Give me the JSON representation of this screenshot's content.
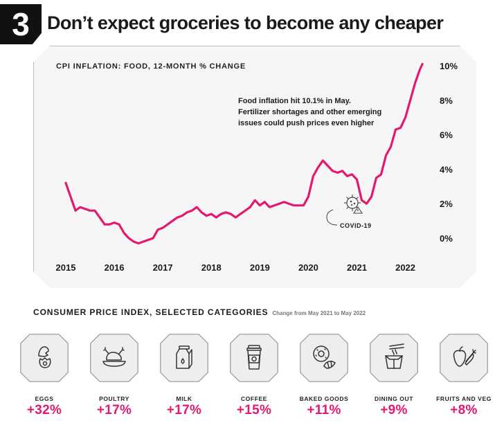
{
  "badge_number": "3",
  "headline": "Don’t expect groceries to become any cheaper",
  "colors": {
    "accent": "#e4186e",
    "panel": "#f6f6f6",
    "badge": "#111111"
  },
  "chart_data": {
    "type": "line",
    "title": "CPI INFLATION: FOOD, 12-MONTH % CHANGE",
    "xlabel": "",
    "ylabel": "",
    "x_tick_labels": [
      "2015",
      "2016",
      "2017",
      "2018",
      "2019",
      "2020",
      "2021",
      "2022"
    ],
    "y_tick_labels": [
      "10%",
      "8%",
      "6%",
      "4%",
      "2%",
      "0%"
    ],
    "y_ticks": [
      10,
      8,
      6,
      4,
      2,
      0
    ],
    "ylim": [
      0,
      10
    ],
    "xlim": [
      2015.0,
      2022.42
    ],
    "series": [
      {
        "name": "Food CPI 12-month % change",
        "x": [
          2015.0,
          2015.1,
          2015.2,
          2015.3,
          2015.4,
          2015.5,
          2015.6,
          2015.7,
          2015.8,
          2015.9,
          2016.0,
          2016.1,
          2016.2,
          2016.3,
          2016.4,
          2016.5,
          2016.6,
          2016.7,
          2016.8,
          2016.9,
          2017.0,
          2017.1,
          2017.2,
          2017.3,
          2017.4,
          2017.5,
          2017.6,
          2017.7,
          2017.8,
          2017.9,
          2018.0,
          2018.1,
          2018.2,
          2018.3,
          2018.4,
          2018.5,
          2018.6,
          2018.7,
          2018.8,
          2018.9,
          2019.0,
          2019.1,
          2019.2,
          2019.3,
          2019.4,
          2019.5,
          2019.6,
          2019.7,
          2019.8,
          2019.9,
          2020.0,
          2020.1,
          2020.2,
          2020.3,
          2020.4,
          2020.5,
          2020.6,
          2020.7,
          2020.8,
          2020.9,
          2021.0,
          2021.1,
          2021.2,
          2021.3,
          2021.4,
          2021.5,
          2021.6,
          2021.7,
          2021.8,
          2021.9,
          2022.0,
          2022.1,
          2022.2,
          2022.3,
          2022.35
        ],
        "values": [
          3.2,
          2.4,
          1.6,
          1.8,
          1.7,
          1.6,
          1.6,
          1.2,
          0.8,
          0.8,
          0.9,
          0.8,
          0.3,
          0.0,
          -0.2,
          -0.3,
          -0.2,
          -0.1,
          0.0,
          0.5,
          0.6,
          0.8,
          1.0,
          1.2,
          1.3,
          1.5,
          1.6,
          1.8,
          1.5,
          1.3,
          1.4,
          1.2,
          1.4,
          1.5,
          1.4,
          1.2,
          1.4,
          1.6,
          1.8,
          2.2,
          1.9,
          2.1,
          1.8,
          1.9,
          2.0,
          2.1,
          2.0,
          1.9,
          1.9,
          1.9,
          2.4,
          3.6,
          4.1,
          4.5,
          4.2,
          3.9,
          3.8,
          3.9,
          3.6,
          3.7,
          3.4,
          2.2,
          2.0,
          2.4,
          3.5,
          3.7,
          4.8,
          5.3,
          6.3,
          6.4,
          7.0,
          8.0,
          9.0,
          9.8,
          10.1
        ]
      }
    ],
    "annotations": [
      {
        "lines": [
          "Food inflation hit 10.1% in May.",
          "Fertilizer shortages and other emerging",
          "issues could push prices even higher"
        ]
      },
      {
        "label": "COVID-19",
        "x": 2020.0,
        "y": 1.9,
        "icon": "virus-icon"
      }
    ]
  },
  "categories_section": {
    "title": "CONSUMER PRICE INDEX, SELECTED CATEGORIES",
    "subtitle": "Change from May 2021 to May 2022",
    "items": [
      {
        "label": "EGGS",
        "value": "+32%",
        "icon": "egg-icon"
      },
      {
        "label": "POULTRY",
        "value": "+17%",
        "icon": "roast-chicken-icon"
      },
      {
        "label": "MILK",
        "value": "+17%",
        "icon": "milk-carton-icon"
      },
      {
        "label": "COFFEE",
        "value": "+15%",
        "icon": "coffee-cup-icon"
      },
      {
        "label": "BAKED GOODS",
        "value": "+11%",
        "icon": "donut-croissant-icon"
      },
      {
        "label": "DINING OUT",
        "value": "+9%",
        "icon": "takeout-box-icon"
      },
      {
        "label": "FRUITS AND VEG",
        "value": "+8%",
        "icon": "fruits-veg-icon"
      }
    ]
  }
}
